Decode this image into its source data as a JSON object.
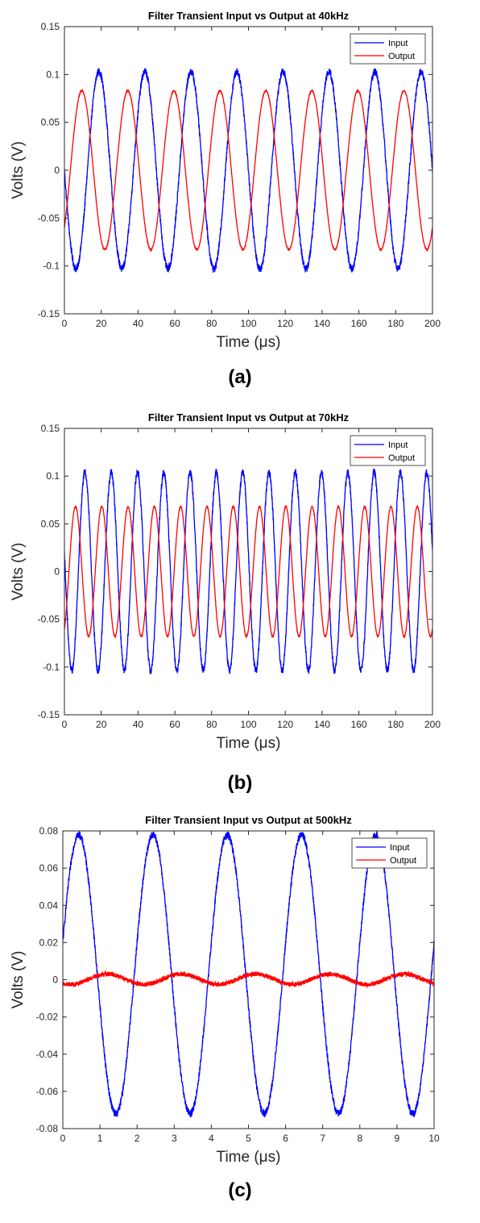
{
  "chart_data": [
    {
      "type": "line",
      "panel_label": "(a)",
      "title": "Filter Transient Input vs Output at 40kHz",
      "xlabel": "Time (μs)",
      "ylabel": "Volts (V)",
      "xlim": [
        0,
        200
      ],
      "ylim": [
        -0.15,
        0.15
      ],
      "xticks": [
        0,
        20,
        40,
        60,
        80,
        100,
        120,
        140,
        160,
        180,
        200
      ],
      "yticks": [
        -0.15,
        -0.1,
        -0.05,
        0,
        0.05,
        0.1,
        0.15
      ],
      "ytick_labels": [
        "-0.15",
        "-0.1",
        "-0.05",
        "0",
        "0.05",
        "0.1",
        "0.15"
      ],
      "grid": false,
      "legend_position": "top-right",
      "series": [
        {
          "name": "Input",
          "color": "#0000ff",
          "frequency_khz": 40,
          "amplitude": 0.103,
          "value_at_t0": 0.0,
          "initial_slope": "falling",
          "noise": 0.004
        },
        {
          "name": "Output",
          "color": "#ff0000",
          "frequency_khz": 40,
          "amplitude": 0.083,
          "value_at_t0": -0.06,
          "initial_slope": "rising",
          "noise": 0.0008
        }
      ]
    },
    {
      "type": "line",
      "panel_label": "(b)",
      "title": "Filter Transient Input vs Output at 70kHz",
      "xlabel": "Time (μs)",
      "ylabel": "Volts (V)",
      "xlim": [
        0,
        200
      ],
      "ylim": [
        -0.15,
        0.15
      ],
      "xticks": [
        0,
        20,
        40,
        60,
        80,
        100,
        120,
        140,
        160,
        180,
        200
      ],
      "yticks": [
        -0.15,
        -0.1,
        -0.05,
        0,
        0.05,
        0.1,
        0.15
      ],
      "ytick_labels": [
        "-0.15",
        "-0.1",
        "-0.05",
        "0",
        "0.05",
        "0.1",
        "0.15"
      ],
      "grid": false,
      "legend_position": "top-right",
      "series": [
        {
          "name": "Input",
          "color": "#0000ff",
          "frequency_khz": 70,
          "amplitude": 0.104,
          "value_at_t0": 0.02,
          "initial_slope": "falling",
          "noise": 0.004
        },
        {
          "name": "Output",
          "color": "#ff0000",
          "frequency_khz": 70,
          "amplitude": 0.068,
          "value_at_t0": -0.06,
          "initial_slope": "rising",
          "noise": 0.0008
        }
      ]
    },
    {
      "type": "line",
      "panel_label": "(c)",
      "title": "Filter Transient Input vs Output at 500kHz",
      "xlabel": "Time (μs)",
      "ylabel": "Volts (V)",
      "xlim": [
        0,
        10
      ],
      "ylim": [
        -0.08,
        0.08
      ],
      "xticks": [
        0,
        1,
        2,
        3,
        4,
        5,
        6,
        7,
        8,
        9,
        10
      ],
      "yticks": [
        -0.08,
        -0.06,
        -0.04,
        -0.02,
        0,
        0.02,
        0.04,
        0.06,
        0.08
      ],
      "ytick_labels": [
        "-0.08",
        "-0.06",
        "-0.04",
        "-0.02",
        "0",
        "0.02",
        "0.04",
        "0.06",
        "0.08"
      ],
      "grid": false,
      "legend_position": "top-right",
      "series": [
        {
          "name": "Input",
          "color": "#0000ff",
          "frequency_khz": 500,
          "amplitude": 0.075,
          "offset": 0.003,
          "value_at_t0": 0.02,
          "initial_slope": "rising",
          "noise": 0.002
        },
        {
          "name": "Output",
          "color": "#ff0000",
          "frequency_khz": 500,
          "amplitude": 0.0028,
          "offset": 0.0003,
          "value_at_t0": -0.002,
          "initial_slope": "falling",
          "noise": 0.0012
        }
      ]
    }
  ]
}
